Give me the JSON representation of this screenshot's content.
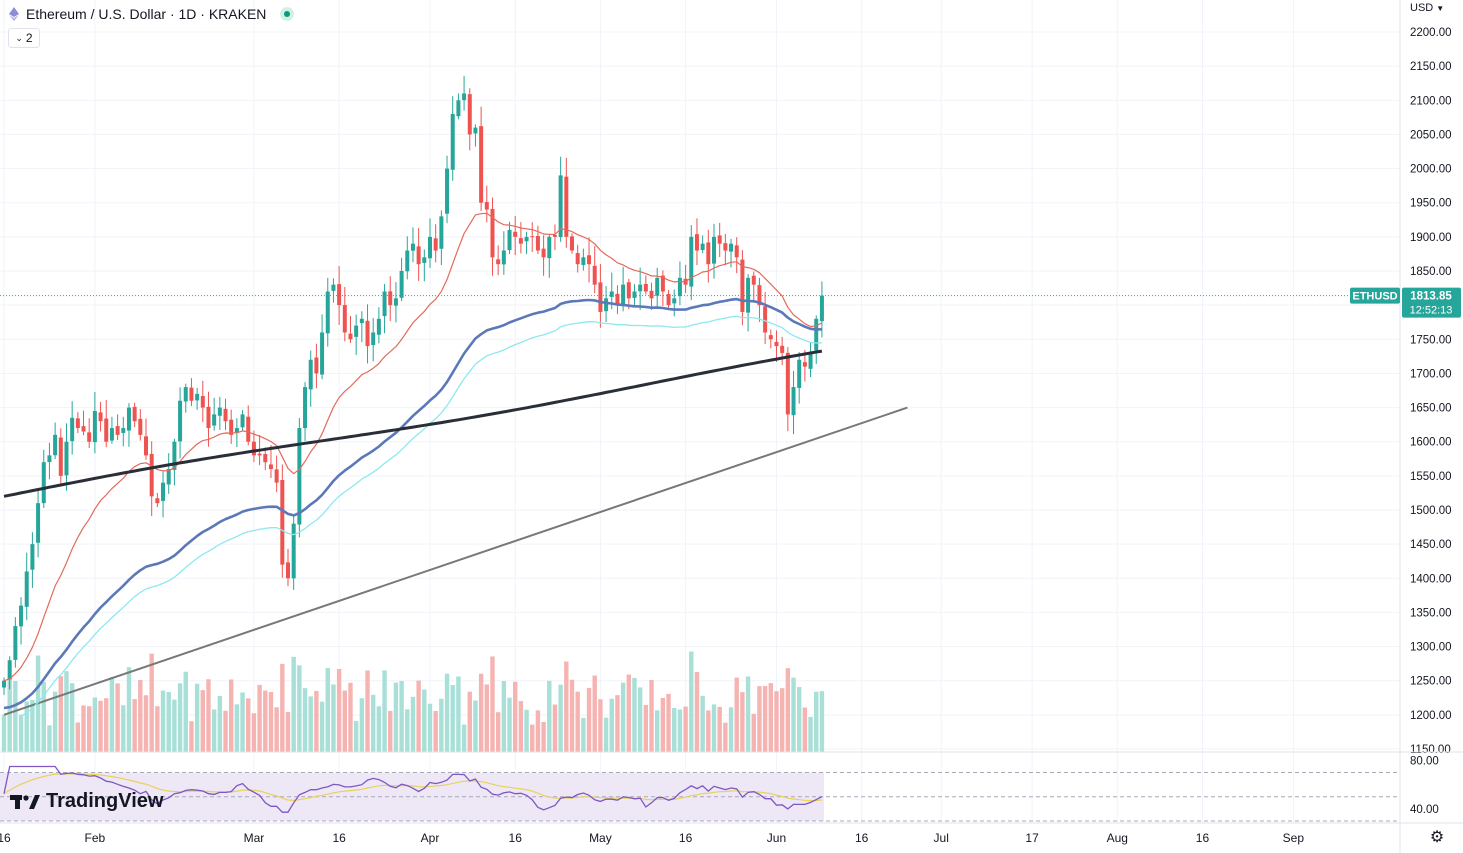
{
  "header": {
    "symbol_title": "Ethereum / U.S. Dollar · 1D · KRAKEN",
    "collapse_count": "2",
    "currency": "USD"
  },
  "logo": {
    "text": "TradingView"
  },
  "price_tags": {
    "symbol": "ETHUSD",
    "price": "1813.85",
    "countdown": "12:52:13"
  },
  "colors": {
    "up": "#26a69a",
    "down": "#ef5350",
    "ema_fast": "#e36a5a",
    "ema_mid": "#5b78b8",
    "ema_cyan": "#8ee8f0",
    "ma_long": "#2a2e39",
    "trendline": "#787878",
    "rsi": "#7e57c2",
    "rsi_ma": "#e8d25a",
    "rsi_band": "#ede7f6"
  },
  "chart_data": [
    {
      "type": "candlestick",
      "title": "Ethereum / U.S. Dollar · 1D · KRAKEN",
      "ylim": [
        1140,
        2230
      ],
      "y_ticks": [
        2200,
        2150,
        2100,
        2050,
        2000,
        1950,
        1900,
        1850,
        1800,
        1750,
        1700,
        1650,
        1600,
        1550,
        1500,
        1450,
        1400,
        1350,
        1300,
        1250,
        1200,
        1150
      ],
      "y_tick_labels": [
        "2200.00",
        "2150.00",
        "2100.00",
        "2050.00",
        "2000.00",
        "1950.00",
        "1900.00",
        "1850.00",
        "1800.00",
        "1750.00",
        "1700.00",
        "1650.00",
        "1600.00",
        "1550.00",
        "1500.00",
        "1450.00",
        "1400.00",
        "1350.00",
        "1300.00",
        "1250.00",
        "1200.00",
        "1150.00"
      ],
      "x_tick_labels": [
        {
          "label": "16",
          "day": 0
        },
        {
          "label": "Feb",
          "day": 16
        },
        {
          "label": "Mar",
          "day": 44
        },
        {
          "label": "16",
          "day": 59
        },
        {
          "label": "Apr",
          "day": 75
        },
        {
          "label": "16",
          "day": 90
        },
        {
          "label": "May",
          "day": 105
        },
        {
          "label": "16",
          "day": 120
        },
        {
          "label": "Jun",
          "day": 136
        },
        {
          "label": "16",
          "day": 151
        },
        {
          "label": "Jul",
          "day": 165
        },
        {
          "label": "17",
          "day": 181
        },
        {
          "label": "Aug",
          "day": 196
        },
        {
          "label": "16",
          "day": 211
        },
        {
          "label": "Sep",
          "day": 227
        }
      ],
      "closes": [
        1250,
        1280,
        1330,
        1360,
        1410,
        1450,
        1510,
        1570,
        1580,
        1610,
        1550,
        1600,
        1635,
        1620,
        1615,
        1600,
        1645,
        1630,
        1600,
        1620,
        1610,
        1620,
        1650,
        1630,
        1610,
        1580,
        1520,
        1510,
        1540,
        1560,
        1600,
        1660,
        1680,
        1660,
        1670,
        1650,
        1620,
        1640,
        1650,
        1630,
        1610,
        1620,
        1640,
        1600,
        1580,
        1580,
        1570,
        1560,
        1540,
        1420,
        1400,
        1480,
        1620,
        1680,
        1720,
        1700,
        1760,
        1820,
        1830,
        1800,
        1760,
        1750,
        1770,
        1780,
        1740,
        1760,
        1780,
        1820,
        1800,
        1810,
        1850,
        1880,
        1890,
        1860,
        1870,
        1900,
        1880,
        1930,
        2000,
        2080,
        2100,
        2110,
        2050,
        2060,
        1950,
        1940,
        1870,
        1860,
        1880,
        1910,
        1900,
        1890,
        1900,
        1900,
        1880,
        1870,
        1900,
        1900,
        1990,
        1900,
        1880,
        1860,
        1870,
        1860,
        1830,
        1790,
        1810,
        1820,
        1800,
        1830,
        1810,
        1820,
        1830,
        1820,
        1810,
        1840,
        1820,
        1800,
        1810,
        1840,
        1830,
        1900,
        1880,
        1890,
        1860,
        1900,
        1890,
        1880,
        1890,
        1870,
        1790,
        1840,
        1830,
        1800,
        1760,
        1750,
        1740,
        1730,
        1640,
        1680,
        1720,
        1710,
        1730,
        1780,
        1813.85
      ],
      "volume_ylim": [
        0,
        220
      ],
      "volume_note": "relative units",
      "ema_fast_period": 20,
      "ema_mid_period": 50,
      "ema_cyan_period": 55,
      "ma_long_period": 200,
      "trendline": [
        {
          "day": 0,
          "value": 1200
        },
        {
          "day": 158,
          "value": 1650
        }
      ],
      "last_price": 1813.85
    },
    {
      "type": "line",
      "title": "",
      "ylim": [
        30,
        82
      ],
      "y_tick_labels": [
        {
          "value": 80,
          "label": "80.00"
        },
        {
          "value": 40,
          "label": "40.00"
        }
      ],
      "bands": [
        70,
        50,
        30
      ]
    }
  ]
}
